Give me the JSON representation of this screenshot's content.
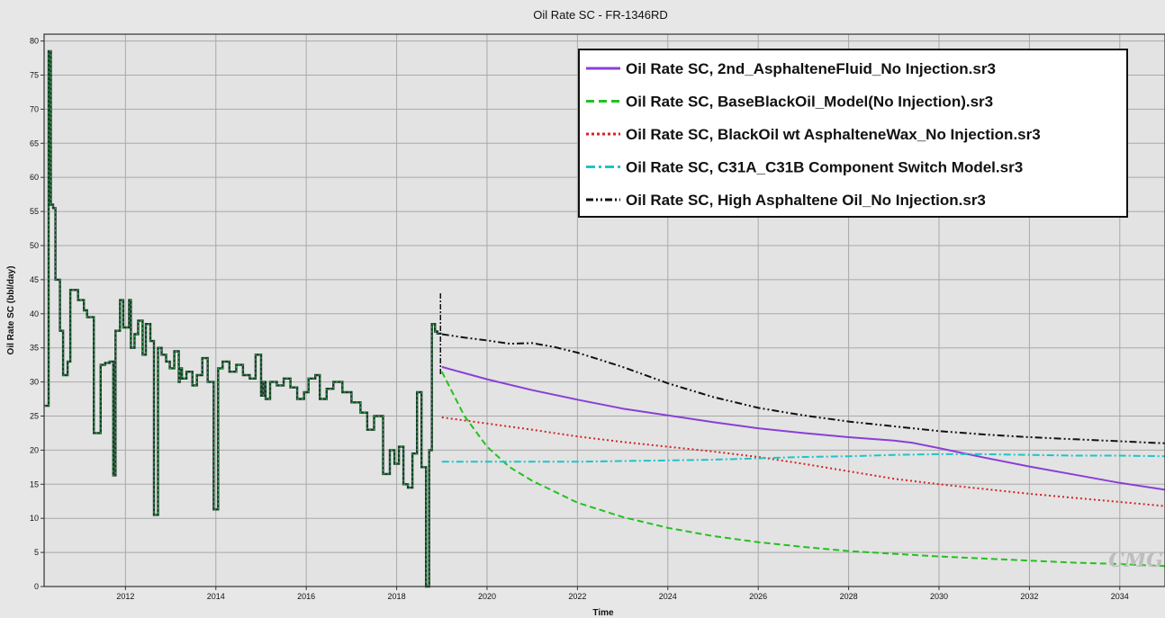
{
  "chart_data": {
    "type": "line",
    "title": "Oil Rate SC - FR-1346RD",
    "xlabel": "Time",
    "ylabel": "Oil Rate SC (bbl/day)",
    "xlim": [
      2010.2,
      2035.0
    ],
    "ylim": [
      0,
      81
    ],
    "x_ticks": [
      2012,
      2014,
      2016,
      2018,
      2020,
      2022,
      2024,
      2026,
      2028,
      2030,
      2032,
      2034
    ],
    "y_ticks": [
      0,
      5,
      10,
      15,
      20,
      25,
      30,
      35,
      40,
      45,
      50,
      55,
      60,
      65,
      70,
      75,
      80
    ],
    "grid": true,
    "legend_position": "top-right",
    "history": {
      "t": [
        2010.2,
        2010.3,
        2010.35,
        2010.4,
        2010.45,
        2010.55,
        2010.62,
        2010.72,
        2010.78,
        2010.95,
        2011.08,
        2011.15,
        2011.3,
        2011.45,
        2011.55,
        2011.65,
        2011.73,
        2011.78,
        2011.88,
        2011.95,
        2012.08,
        2012.12,
        2012.2,
        2012.28,
        2012.38,
        2012.45,
        2012.55,
        2012.63,
        2012.72,
        2012.8,
        2012.9,
        2012.98,
        2013.08,
        2013.18,
        2013.2,
        2013.25,
        2013.35,
        2013.48,
        2013.58,
        2013.7,
        2013.82,
        2013.95,
        2014.05,
        2014.15,
        2014.3,
        2014.45,
        2014.6,
        2014.75,
        2014.88,
        2015.0,
        2015.05,
        2015.1,
        2015.2,
        2015.35,
        2015.5,
        2015.65,
        2015.8,
        2015.95,
        2016.05,
        2016.2,
        2016.3,
        2016.45,
        2016.6,
        2016.8,
        2017.0,
        2017.2,
        2017.35,
        2017.5,
        2017.7,
        2017.85,
        2017.95,
        2018.05,
        2018.15,
        2018.25,
        2018.35,
        2018.45,
        2018.55,
        2018.65,
        2018.72,
        2018.78,
        2018.85,
        2018.9,
        2018.97
      ],
      "v": [
        26.5,
        78.5,
        56,
        55.5,
        45,
        37.5,
        31,
        33,
        43.5,
        42,
        40.5,
        39.5,
        22.5,
        32.5,
        32.8,
        33,
        16.3,
        37.5,
        42,
        38,
        42,
        35,
        37,
        39,
        34,
        38.5,
        36,
        10.5,
        35,
        34,
        33,
        32,
        34.5,
        30,
        32,
        30.5,
        31.5,
        29.5,
        31,
        33.5,
        30,
        11.3,
        32,
        33,
        31.5,
        32.5,
        31,
        30.5,
        34,
        28,
        30,
        27.5,
        30,
        29.5,
        30.5,
        29.2,
        27.5,
        28.5,
        30.5,
        31,
        27.5,
        29,
        30,
        28.5,
        27,
        25.5,
        23,
        25,
        16.5,
        20,
        18,
        20.5,
        15,
        14.5,
        19.5,
        28.5,
        17.5,
        0,
        20,
        38.5,
        37.4,
        37.1,
        37
      ]
    },
    "series": [
      {
        "name": "Oil Rate SC, 2nd_AsphalteneFluid_No Injection.sr3",
        "color": "#8a3fd6",
        "dash": "solid",
        "x": [
          2019.0,
          2020,
          2021,
          2022,
          2023,
          2024,
          2025,
          2026,
          2027,
          2028,
          2029,
          2029.4,
          2030,
          2031,
          2032,
          2033,
          2034,
          2035
        ],
        "y": [
          32.2,
          30.4,
          28.8,
          27.4,
          26.1,
          25.1,
          24.1,
          23.2,
          22.5,
          21.9,
          21.4,
          21.1,
          20.3,
          18.9,
          17.6,
          16.4,
          15.2,
          14.2
        ]
      },
      {
        "name": "Oil Rate SC, BaseBlackOil_Model(No Injection).sr3",
        "color": "#22c11e",
        "dash": "dash",
        "x": [
          2019.0,
          2019.5,
          2020,
          2020.5,
          2021,
          2022,
          2023,
          2024,
          2025,
          2026,
          2027,
          2028,
          2029,
          2030,
          2031,
          2032,
          2033,
          2034,
          2035
        ],
        "y": [
          31.5,
          25,
          20.5,
          17.5,
          15.5,
          12.3,
          10.2,
          8.6,
          7.4,
          6.5,
          5.8,
          5.2,
          4.8,
          4.4,
          4.1,
          3.8,
          3.5,
          3.3,
          3.0
        ]
      },
      {
        "name": "Oil Rate SC, BlackOil wt AsphalteneWax_No Injection.sr3",
        "color": "#d42424",
        "dash": "dot",
        "x": [
          2019.0,
          2020,
          2021,
          2022,
          2023,
          2024,
          2025,
          2026,
          2027,
          2028,
          2029,
          2030,
          2031,
          2032,
          2033,
          2034,
          2035
        ],
        "y": [
          24.8,
          23.9,
          23.0,
          22.0,
          21.2,
          20.5,
          19.8,
          19.0,
          18.0,
          16.9,
          15.8,
          15.0,
          14.3,
          13.6,
          13.0,
          12.4,
          11.8
        ]
      },
      {
        "name": "Oil Rate SC, C31A_C31B Component Switch Model.sr3",
        "color": "#1ec4c8",
        "dash": "dashdot",
        "x": [
          2019.0,
          2020,
          2021,
          2022,
          2023,
          2024,
          2025,
          2026,
          2027,
          2028,
          2029,
          2030,
          2031,
          2032,
          2033,
          2034,
          2035
        ],
        "y": [
          18.3,
          18.3,
          18.3,
          18.3,
          18.4,
          18.5,
          18.6,
          18.8,
          19.0,
          19.1,
          19.3,
          19.4,
          19.4,
          19.3,
          19.2,
          19.2,
          19.1
        ]
      },
      {
        "name": "Oil Rate SC, High Asphaltene Oil_No Injection.sr3",
        "color": "#111111",
        "dash": "dashdotdot",
        "x": [
          2019.0,
          2019.5,
          2020,
          2020.5,
          2021,
          2021.5,
          2022,
          2023,
          2024,
          2025,
          2026,
          2027,
          2028,
          2029,
          2030,
          2031,
          2032,
          2033,
          2034,
          2035
        ],
        "y": [
          37,
          36.5,
          36.1,
          35.6,
          35.7,
          35.1,
          34.3,
          32.2,
          29.8,
          27.8,
          26.2,
          25.1,
          24.2,
          23.5,
          22.8,
          22.3,
          21.9,
          21.6,
          21.3,
          21.0
        ]
      }
    ]
  },
  "watermark": "CMG"
}
